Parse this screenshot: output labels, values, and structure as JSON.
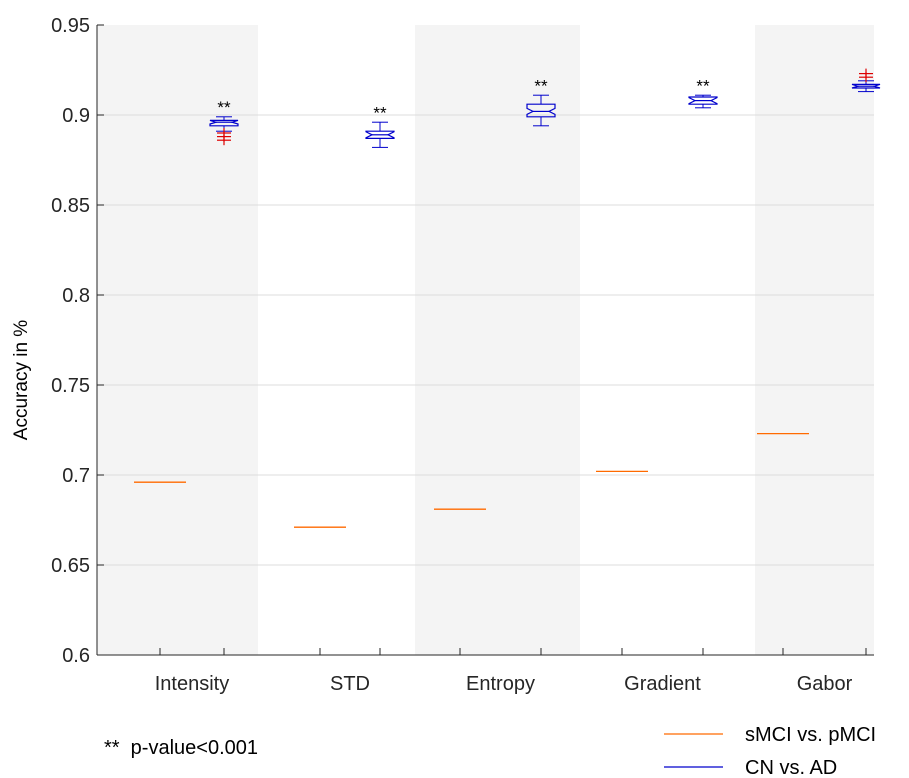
{
  "chart_data": {
    "type": "boxplot",
    "ylabel": "Accuracy in %",
    "ylim": [
      0.6,
      0.95
    ],
    "yticks": [
      0.6,
      0.65,
      0.7,
      0.75,
      0.8,
      0.85,
      0.9,
      0.95
    ],
    "ytick_labels": [
      "0.6",
      "0.65",
      "0.7",
      "0.75",
      "0.8",
      "0.85",
      "0.9",
      "0.95"
    ],
    "grid": "horizontal",
    "categories": [
      "Intensity",
      "STD",
      "Entropy",
      "Gradient",
      "Gabor"
    ],
    "shaded_bands": [
      true,
      false,
      true,
      false,
      true
    ],
    "colors": {
      "smci": "#ff6a00",
      "cn": "#0000cc",
      "outlier": "#dd0000",
      "band": "#f4f4f4",
      "grid": "#dcdcdc",
      "axis": "#262626"
    },
    "series": [
      {
        "name": "sMCI vs. pMCI",
        "values": [
          0.696,
          0.671,
          0.681,
          0.702,
          0.723
        ]
      },
      {
        "name": "CN vs. AD",
        "boxes": [
          {
            "whisker_low": 0.891,
            "q1": 0.894,
            "median": 0.896,
            "q3": 0.897,
            "whisker_high": 0.899,
            "outliers": [
              0.886,
              0.888,
              0.89
            ]
          },
          {
            "whisker_low": 0.882,
            "q1": 0.887,
            "median": 0.889,
            "q3": 0.891,
            "whisker_high": 0.896,
            "outliers": []
          },
          {
            "whisker_low": 0.894,
            "q1": 0.899,
            "median": 0.902,
            "q3": 0.906,
            "whisker_high": 0.911,
            "outliers": []
          },
          {
            "whisker_low": 0.904,
            "q1": 0.906,
            "median": 0.908,
            "q3": 0.91,
            "whisker_high": 0.911,
            "outliers": []
          },
          {
            "whisker_low": 0.913,
            "q1": 0.915,
            "median": 0.916,
            "q3": 0.917,
            "whisker_high": 0.919,
            "outliers": [
              0.921,
              0.923
            ]
          }
        ]
      }
    ],
    "significance": [
      {
        "category": "Intensity",
        "text": "**",
        "y": 0.901
      },
      {
        "category": "STD",
        "text": "**",
        "y": 0.898
      },
      {
        "category": "Entropy",
        "text": "**",
        "y": 0.913
      },
      {
        "category": "Gradient",
        "text": "**",
        "y": 0.913
      }
    ],
    "legend": {
      "position": "bottom-right",
      "entries": [
        "sMCI vs. pMCI",
        "CN vs. AD"
      ]
    },
    "footnote": "**  p-value<0.001"
  }
}
